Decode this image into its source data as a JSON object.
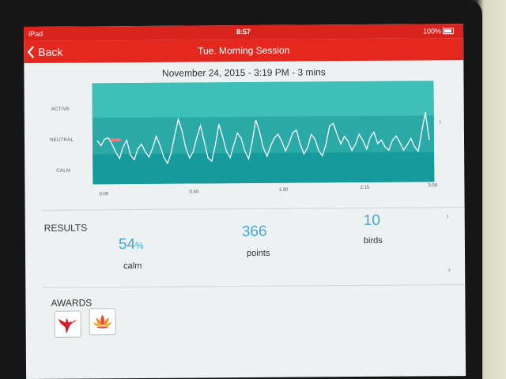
{
  "status_bar": {
    "device": "iPad",
    "time": "8:57",
    "battery": "100%"
  },
  "nav": {
    "back_label": "Back",
    "title": "Tue. Morning Session"
  },
  "session": {
    "date_line": "November 24, 2015 - 3:19 PM - 3 mins"
  },
  "chart_data": {
    "type": "line",
    "y_labels": [
      "ACTIVE",
      "NEUTRAL",
      "CALM"
    ],
    "x_ticks": [
      "0:00",
      "0:45",
      "1:30",
      "2:15",
      "3:00"
    ],
    "x_range_seconds": [
      0,
      180
    ],
    "y_range": [
      0,
      1
    ],
    "band_levels": {
      "active": 1.0,
      "neutral": 0.5,
      "calm": 0.0
    },
    "series": [
      {
        "color": "#ffffff",
        "points": [
          [
            0,
            0.48
          ],
          [
            2,
            0.4
          ],
          [
            4,
            0.5
          ],
          [
            6,
            0.52
          ],
          [
            8,
            0.42
          ],
          [
            10,
            0.3
          ],
          [
            12,
            0.2
          ],
          [
            14,
            0.38
          ],
          [
            16,
            0.48
          ],
          [
            18,
            0.25
          ],
          [
            20,
            0.18
          ],
          [
            22,
            0.35
          ],
          [
            24,
            0.42
          ],
          [
            26,
            0.3
          ],
          [
            28,
            0.22
          ],
          [
            30,
            0.36
          ],
          [
            32,
            0.54
          ],
          [
            34,
            0.4
          ],
          [
            36,
            0.22
          ],
          [
            38,
            0.12
          ],
          [
            40,
            0.28
          ],
          [
            42,
            0.55
          ],
          [
            44,
            0.8
          ],
          [
            46,
            0.62
          ],
          [
            48,
            0.35
          ],
          [
            50,
            0.2
          ],
          [
            52,
            0.3
          ],
          [
            54,
            0.52
          ],
          [
            56,
            0.7
          ],
          [
            58,
            0.45
          ],
          [
            60,
            0.2
          ],
          [
            62,
            0.15
          ],
          [
            64,
            0.4
          ],
          [
            66,
            0.72
          ],
          [
            68,
            0.52
          ],
          [
            70,
            0.3
          ],
          [
            72,
            0.2
          ],
          [
            74,
            0.4
          ],
          [
            76,
            0.58
          ],
          [
            78,
            0.5
          ],
          [
            80,
            0.3
          ],
          [
            82,
            0.18
          ],
          [
            84,
            0.45
          ],
          [
            86,
            0.78
          ],
          [
            88,
            0.6
          ],
          [
            90,
            0.35
          ],
          [
            92,
            0.22
          ],
          [
            94,
            0.38
          ],
          [
            96,
            0.5
          ],
          [
            98,
            0.56
          ],
          [
            100,
            0.45
          ],
          [
            102,
            0.3
          ],
          [
            104,
            0.42
          ],
          [
            106,
            0.58
          ],
          [
            108,
            0.62
          ],
          [
            110,
            0.4
          ],
          [
            112,
            0.25
          ],
          [
            114,
            0.35
          ],
          [
            116,
            0.55
          ],
          [
            118,
            0.48
          ],
          [
            120,
            0.3
          ],
          [
            122,
            0.22
          ],
          [
            124,
            0.4
          ],
          [
            126,
            0.68
          ],
          [
            128,
            0.72
          ],
          [
            130,
            0.55
          ],
          [
            132,
            0.4
          ],
          [
            134,
            0.52
          ],
          [
            136,
            0.44
          ],
          [
            138,
            0.3
          ],
          [
            140,
            0.4
          ],
          [
            142,
            0.55
          ],
          [
            144,
            0.45
          ],
          [
            146,
            0.32
          ],
          [
            148,
            0.5
          ],
          [
            150,
            0.58
          ],
          [
            152,
            0.4
          ],
          [
            154,
            0.46
          ],
          [
            156,
            0.35
          ],
          [
            158,
            0.3
          ],
          [
            160,
            0.45
          ],
          [
            162,
            0.52
          ],
          [
            164,
            0.42
          ],
          [
            166,
            0.3
          ],
          [
            168,
            0.38
          ],
          [
            170,
            0.48
          ],
          [
            172,
            0.35
          ],
          [
            174,
            0.28
          ],
          [
            176,
            0.6
          ],
          [
            178,
            0.88
          ],
          [
            180,
            0.45
          ]
        ]
      }
    ]
  },
  "results": {
    "title": "RESULTS",
    "calm": {
      "value": "54",
      "unit": "%",
      "label": "calm"
    },
    "points": {
      "value": "366",
      "label": "points"
    },
    "birds": {
      "value": "10",
      "label": "birds"
    }
  },
  "awards": {
    "title": "AWARDS",
    "items": [
      {
        "icon": "hummingbird-icon",
        "color": "#d51f2a"
      },
      {
        "icon": "lotus-icon",
        "color": "#e0472c"
      }
    ]
  },
  "colors": {
    "header_red": "#e4281f",
    "chart_teal": "#1fa7a8",
    "accent_blue": "#45a9cf",
    "screen_bg": "#eef1f1"
  }
}
